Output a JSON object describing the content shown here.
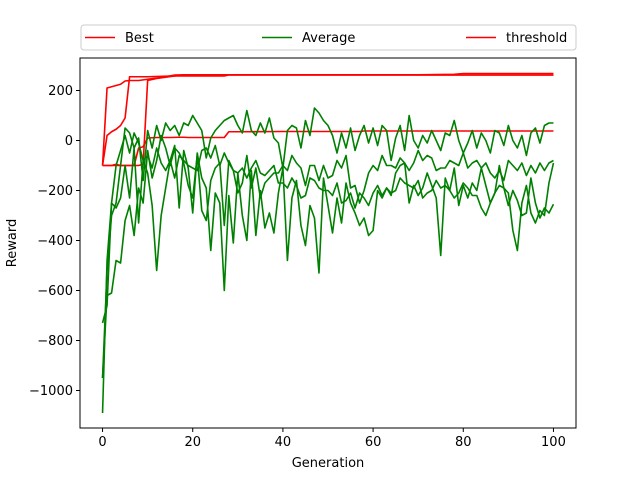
{
  "chart_data": {
    "type": "line",
    "title": "",
    "xlabel": "Generation",
    "ylabel": "Reward",
    "xlim": [
      -5,
      105
    ],
    "ylim": [
      -1150,
      330
    ],
    "xticks": [
      0,
      20,
      40,
      60,
      80,
      100
    ],
    "yticks": [
      -1000,
      -800,
      -600,
      -400,
      -200,
      0,
      200
    ],
    "grid": false,
    "legend": {
      "placement": "top",
      "columns": 3,
      "entries": [
        {
          "label": "Best",
          "color": "#ff0000"
        },
        {
          "label": "Average",
          "color": "#008000"
        },
        {
          "label": "threshold",
          "color": "#ff0000"
        }
      ]
    },
    "series": [
      {
        "role": "best",
        "color": "#ff0000",
        "x": [
          0,
          1,
          2,
          3,
          4,
          5,
          6,
          7,
          8,
          10,
          12,
          14,
          16,
          18,
          20,
          25,
          30,
          40,
          50,
          60,
          70,
          78,
          80,
          90,
          100
        ],
        "values": [
          -100,
          210,
          215,
          220,
          225,
          238,
          240,
          240,
          240,
          245,
          250,
          255,
          262,
          263,
          263,
          263,
          263,
          263,
          263,
          263,
          263,
          265,
          268,
          268,
          268
        ]
      },
      {
        "role": "best",
        "color": "#ff0000",
        "x": [
          0,
          1,
          2,
          3,
          4,
          5,
          6,
          7,
          8,
          9,
          10,
          12,
          14,
          16,
          18,
          20,
          30,
          40,
          60,
          70,
          80,
          90,
          100
        ],
        "values": [
          -100,
          -100,
          -100,
          -95,
          -100,
          -100,
          -100,
          -100,
          -100,
          -95,
          240,
          248,
          253,
          258,
          262,
          263,
          262,
          262,
          262,
          262,
          262,
          262,
          262
        ]
      },
      {
        "role": "best",
        "color": "#ff0000",
        "x": [
          0,
          1,
          2,
          3,
          4,
          5,
          6,
          7,
          8,
          9,
          10,
          15,
          20,
          27,
          28,
          40,
          55,
          59,
          60,
          70,
          80,
          90,
          100
        ],
        "values": [
          -100,
          20,
          35,
          45,
          60,
          90,
          255,
          255,
          255,
          255,
          255,
          258,
          258,
          258,
          262,
          262,
          262,
          262,
          262,
          262,
          262,
          262,
          262
        ]
      },
      {
        "role": "best",
        "color": "#ff0000",
        "x": [
          0,
          1,
          2,
          3,
          4,
          5,
          6,
          7,
          8,
          9,
          10,
          12,
          15,
          17,
          18,
          19,
          20,
          25,
          26,
          27,
          28,
          30,
          40,
          50,
          57,
          58,
          60,
          70,
          80,
          90,
          100
        ],
        "values": [
          -100,
          -100,
          -100,
          -100,
          -100,
          -100,
          -100,
          -100,
          -30,
          -25,
          10,
          12,
          12,
          13,
          13,
          12,
          12,
          12,
          12,
          12,
          35,
          35,
          36,
          36,
          36,
          38,
          38,
          38,
          38,
          38,
          38
        ]
      },
      {
        "role": "average",
        "color": "#008000",
        "x": [
          0,
          1,
          2,
          3,
          4,
          5,
          6,
          7,
          8,
          9,
          10,
          11,
          12,
          13,
          14,
          15,
          16,
          17,
          18,
          19,
          20,
          21,
          22,
          23,
          24,
          25,
          26,
          27,
          28,
          29,
          30,
          31,
          32,
          33,
          34,
          35,
          36,
          37,
          38,
          39,
          40,
          41,
          42,
          43,
          44,
          45,
          46,
          47,
          48,
          49,
          50,
          51,
          52,
          53,
          54,
          55,
          56,
          57,
          58,
          59,
          60,
          61,
          62,
          63,
          64,
          65,
          66,
          67,
          68,
          69,
          70,
          71,
          72,
          73,
          74,
          75,
          76,
          77,
          78,
          79,
          80,
          81,
          82,
          83,
          84,
          85,
          86,
          87,
          88,
          89,
          90,
          91,
          92,
          93,
          94,
          95,
          96,
          97,
          98,
          99,
          100
        ],
        "values": [
          -1090,
          -480,
          -250,
          -100,
          -40,
          20,
          -50,
          30,
          -10,
          -80,
          -60,
          -110,
          -30,
          -90,
          -120,
          -80,
          -150,
          -60,
          -80,
          -100,
          -110,
          -120,
          -40,
          -30,
          -70,
          -20,
          -100,
          -50,
          -90,
          -120,
          -130,
          -110,
          -150,
          -110,
          -80,
          -130,
          -140,
          -120,
          -100,
          -170,
          -170,
          -190,
          -150,
          -180,
          -230,
          -220,
          -150,
          -160,
          -190,
          -200,
          -200,
          -220,
          -170,
          -250,
          -240,
          -210,
          -270,
          -210,
          -230,
          -260,
          -210,
          -180,
          -220,
          -190,
          -210,
          -200,
          -150,
          -170,
          -180,
          -190,
          -160,
          -230,
          -210,
          -200,
          -160,
          -190,
          -180,
          -200,
          -230,
          -210,
          -170,
          -190,
          -220,
          -220,
          -270,
          -300,
          -250,
          -210,
          -180,
          -190,
          -260,
          -200,
          -240,
          -300,
          -290,
          -150,
          -250,
          -310,
          -270,
          -290,
          -255
        ]
      },
      {
        "role": "average",
        "color": "#008000",
        "x": [
          0,
          1,
          2,
          3,
          4,
          5,
          6,
          7,
          8,
          9,
          10,
          11,
          12,
          13,
          14,
          15,
          16,
          17,
          18,
          19,
          20,
          21,
          22,
          23,
          24,
          25,
          26,
          27,
          28,
          29,
          30,
          31,
          32,
          33,
          34,
          35,
          36,
          37,
          38,
          39,
          40,
          41,
          42,
          43,
          44,
          45,
          46,
          47,
          48,
          49,
          50,
          51,
          52,
          53,
          54,
          55,
          56,
          57,
          58,
          59,
          60,
          61,
          62,
          63,
          64,
          65,
          66,
          67,
          68,
          69,
          70,
          71,
          72,
          73,
          74,
          75,
          76,
          77,
          78,
          79,
          80,
          81,
          82,
          83,
          84,
          85,
          86,
          87,
          88,
          89,
          90,
          91,
          92,
          93,
          94,
          95,
          96,
          97,
          98,
          99,
          100
        ],
        "values": [
          -950,
          -620,
          -610,
          -480,
          -490,
          -320,
          -260,
          -380,
          -190,
          -250,
          -40,
          -150,
          -80,
          20,
          -30,
          -100,
          -30,
          -50,
          -90,
          -180,
          -230,
          -60,
          -280,
          -320,
          -160,
          -110,
          -90,
          -340,
          -80,
          -120,
          -210,
          -170,
          -60,
          -190,
          -110,
          -230,
          -170,
          -150,
          -130,
          -130,
          -100,
          -120,
          -60,
          -90,
          -110,
          -180,
          -100,
          -100,
          -160,
          -100,
          -150,
          -140,
          -80,
          -110,
          -60,
          -190,
          -180,
          -250,
          -200,
          -130,
          -100,
          -120,
          -60,
          -100,
          -100,
          -110,
          -70,
          -90,
          -120,
          -90,
          -40,
          -80,
          -60,
          -70,
          -120,
          -110,
          -110,
          -80,
          -90,
          -100,
          -50,
          -110,
          -90,
          -80,
          -110,
          -90,
          -130,
          -150,
          -120,
          -160,
          -80,
          -100,
          -120,
          -90,
          -140,
          -100,
          -130,
          -90,
          -120,
          -90,
          -80
        ]
      },
      {
        "role": "average",
        "color": "#008000",
        "x": [
          0,
          1,
          2,
          3,
          4,
          5,
          6,
          7,
          8,
          9,
          10,
          11,
          12,
          13,
          14,
          15,
          16,
          17,
          18,
          19,
          20,
          21,
          22,
          23,
          24,
          25,
          26,
          27,
          28,
          29,
          30,
          31,
          32,
          33,
          34,
          35,
          36,
          37,
          38,
          39,
          40,
          41,
          42,
          43,
          44,
          45,
          46,
          47,
          48,
          49,
          50,
          51,
          52,
          53,
          54,
          55,
          56,
          57,
          58,
          59,
          60,
          61,
          62,
          63,
          64,
          65,
          66,
          67,
          68,
          69,
          70,
          71,
          72,
          73,
          74,
          75,
          76,
          77,
          78,
          79,
          80,
          81,
          82,
          83,
          84,
          85,
          86,
          87,
          88,
          89,
          90,
          91,
          92,
          93,
          94,
          95,
          96,
          97,
          98,
          99,
          100
        ],
        "values": [
          -730,
          -660,
          -250,
          -270,
          -230,
          -100,
          -230,
          -30,
          -330,
          -80,
          -130,
          -260,
          -520,
          -300,
          -190,
          -80,
          -20,
          -270,
          -40,
          -110,
          -290,
          -50,
          -150,
          -190,
          -440,
          -210,
          -250,
          -600,
          -220,
          -410,
          -130,
          -300,
          -400,
          -120,
          -380,
          -200,
          -350,
          -290,
          -370,
          -210,
          -110,
          -480,
          -230,
          -160,
          -340,
          -420,
          -260,
          -310,
          -530,
          -150,
          -260,
          -370,
          -230,
          -330,
          -170,
          -250,
          -290,
          -340,
          -310,
          -380,
          -360,
          -200,
          -230,
          -190,
          -220,
          -130,
          -100,
          -90,
          -250,
          -180,
          -220,
          -190,
          -130,
          -180,
          -230,
          -460,
          -150,
          -200,
          -110,
          -260,
          -180,
          -230,
          -170,
          -200,
          -110,
          -180,
          -250,
          -210,
          -100,
          -190,
          -210,
          -360,
          -440,
          -250,
          -180,
          -290,
          -330,
          -280,
          -300,
          -170,
          -90
        ]
      },
      {
        "role": "average",
        "color": "#008000",
        "x": [
          0,
          1,
          2,
          3,
          4,
          5,
          6,
          7,
          8,
          9,
          10,
          11,
          12,
          13,
          14,
          15,
          16,
          17,
          18,
          19,
          20,
          21,
          22,
          23,
          24,
          25,
          26,
          27,
          28,
          29,
          30,
          31,
          32,
          33,
          34,
          35,
          36,
          37,
          38,
          39,
          40,
          41,
          42,
          43,
          44,
          45,
          46,
          47,
          48,
          49,
          50,
          51,
          52,
          53,
          54,
          55,
          56,
          57,
          58,
          59,
          60,
          61,
          62,
          63,
          64,
          65,
          66,
          67,
          68,
          69,
          70,
          71,
          72,
          73,
          74,
          75,
          76,
          77,
          78,
          79,
          80,
          81,
          82,
          83,
          84,
          85,
          86,
          87,
          88,
          89,
          90,
          91,
          92,
          93,
          94,
          95,
          96,
          97,
          98,
          99,
          100
        ],
        "values": [
          -950,
          -520,
          -300,
          -250,
          -100,
          50,
          30,
          -30,
          10,
          -160,
          40,
          -30,
          60,
          0,
          70,
          40,
          60,
          20,
          70,
          60,
          100,
          70,
          40,
          -70,
          10,
          40,
          60,
          80,
          90,
          100,
          60,
          30,
          120,
          40,
          20,
          70,
          30,
          90,
          10,
          -10,
          -110,
          40,
          60,
          50,
          -30,
          80,
          20,
          130,
          110,
          80,
          60,
          20,
          -50,
          30,
          -30,
          50,
          -40,
          20,
          60,
          -10,
          50,
          -20,
          60,
          40,
          -80,
          10,
          60,
          -40,
          100,
          0,
          -30,
          20,
          -10,
          40,
          0,
          -40,
          30,
          20,
          80,
          0,
          -50,
          -10,
          40,
          -30,
          30,
          0,
          -50,
          40,
          30,
          -20,
          60,
          0,
          -30,
          20,
          -60,
          30,
          50,
          -10,
          60,
          70,
          70
        ]
      }
    ]
  }
}
